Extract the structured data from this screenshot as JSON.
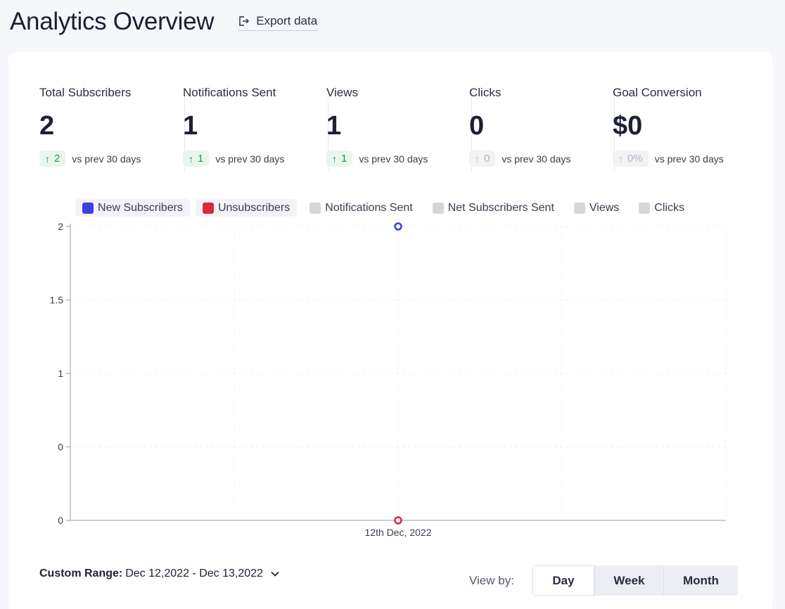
{
  "header": {
    "title": "Analytics Overview",
    "export_label": "Export data",
    "export_icon": "export-icon"
  },
  "stats": [
    {
      "label": "Total Subscribers",
      "value": "2",
      "delta": "2",
      "trend": "up",
      "compare": "vs prev 30 days"
    },
    {
      "label": "Notifications Sent",
      "value": "1",
      "delta": "1",
      "trend": "up",
      "compare": "vs prev 30 days"
    },
    {
      "label": "Views",
      "value": "1",
      "delta": "1",
      "trend": "up",
      "compare": "vs prev 30 days"
    },
    {
      "label": "Clicks",
      "value": "0",
      "delta": "0",
      "trend": "flat",
      "compare": "vs prev 30 days"
    },
    {
      "label": "Goal Conversion",
      "value": "$0",
      "delta": "0%",
      "trend": "flat",
      "compare": "vs prev 30 days"
    }
  ],
  "legend": [
    {
      "label": "New Subscribers",
      "color": "#3b3fe0",
      "active": true
    },
    {
      "label": "Unsubscribers",
      "color": "#dc2845",
      "active": true
    },
    {
      "label": "Notifications Sent",
      "color": "#d6d6d6",
      "active": false
    },
    {
      "label": "Net Subscribers Sent",
      "color": "#d6d6d6",
      "active": false
    },
    {
      "label": "Views",
      "color": "#d6d6d6",
      "active": false
    },
    {
      "label": "Clicks",
      "color": "#d6d6d6",
      "active": false
    }
  ],
  "chart_data": {
    "type": "line",
    "x": [
      "12th Dec, 2022"
    ],
    "y_ticks": [
      "0",
      "0",
      "1",
      "1.5",
      "2"
    ],
    "ylim": [
      0,
      2
    ],
    "series": [
      {
        "name": "New Subscribers",
        "color": "#3b3fe0",
        "values": [
          2
        ]
      },
      {
        "name": "Unsubscribers",
        "color": "#dc2845",
        "values": [
          0
        ]
      }
    ],
    "grid": true
  },
  "footer": {
    "range_label": "Custom Range:",
    "range_value": "Dec 12,2022 - Dec 13,2022",
    "viewby_label": "View by:",
    "view_options": [
      "Day",
      "Week",
      "Month"
    ],
    "view_selected": "Day"
  }
}
